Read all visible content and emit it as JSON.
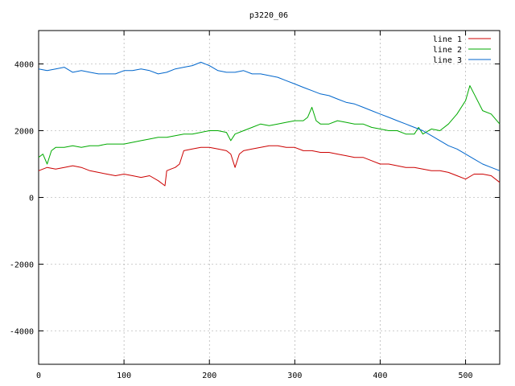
{
  "chart_data": {
    "type": "line",
    "title": "p3220_06",
    "xlabel": "",
    "ylabel": "",
    "xlim": [
      0,
      540
    ],
    "ylim": [
      -5000,
      5000
    ],
    "xticks": [
      0,
      100,
      200,
      300,
      400,
      500
    ],
    "yticks": [
      -4000,
      -2000,
      0,
      2000,
      4000
    ],
    "grid": true,
    "legend_position": "top-right",
    "series": [
      {
        "name": "line 1",
        "color": "#cc0000",
        "x": [
          0,
          10,
          20,
          30,
          40,
          50,
          60,
          70,
          80,
          90,
          100,
          110,
          120,
          130,
          140,
          148,
          150,
          155,
          160,
          165,
          170,
          180,
          190,
          200,
          210,
          220,
          225,
          230,
          235,
          240,
          250,
          260,
          270,
          280,
          290,
          300,
          310,
          320,
          330,
          340,
          350,
          360,
          370,
          380,
          390,
          400,
          410,
          420,
          430,
          440,
          450,
          460,
          470,
          480,
          490,
          500,
          510,
          520,
          530,
          540
        ],
        "y": [
          800,
          900,
          850,
          900,
          950,
          900,
          800,
          750,
          700,
          650,
          700,
          650,
          600,
          650,
          500,
          350,
          800,
          850,
          900,
          1000,
          1400,
          1450,
          1500,
          1500,
          1450,
          1400,
          1300,
          900,
          1300,
          1400,
          1450,
          1500,
          1550,
          1550,
          1500,
          1500,
          1400,
          1400,
          1350,
          1350,
          1300,
          1250,
          1200,
          1200,
          1100,
          1000,
          1000,
          950,
          900,
          900,
          850,
          800,
          800,
          750,
          650,
          550,
          700,
          700,
          650,
          450
        ]
      },
      {
        "name": "line 2",
        "color": "#00aa00",
        "x": [
          0,
          5,
          10,
          15,
          20,
          30,
          40,
          50,
          60,
          70,
          80,
          90,
          100,
          110,
          120,
          130,
          140,
          150,
          160,
          170,
          180,
          190,
          200,
          210,
          220,
          225,
          230,
          240,
          250,
          260,
          270,
          280,
          290,
          300,
          310,
          315,
          320,
          325,
          330,
          340,
          350,
          360,
          370,
          380,
          390,
          400,
          410,
          420,
          430,
          440,
          445,
          450,
          460,
          470,
          480,
          490,
          500,
          505,
          510,
          520,
          530,
          540
        ],
        "y": [
          1200,
          1300,
          1000,
          1400,
          1500,
          1500,
          1550,
          1500,
          1550,
          1550,
          1600,
          1600,
          1600,
          1650,
          1700,
          1750,
          1800,
          1800,
          1850,
          1900,
          1900,
          1950,
          2000,
          2000,
          1950,
          1700,
          1900,
          2000,
          2100,
          2200,
          2150,
          2200,
          2250,
          2300,
          2300,
          2400,
          2700,
          2300,
          2200,
          2200,
          2300,
          2250,
          2200,
          2200,
          2100,
          2050,
          2000,
          2000,
          1900,
          1900,
          2100,
          1900,
          2050,
          2000,
          2200,
          2500,
          2900,
          3350,
          3100,
          2600,
          2500,
          2200
        ]
      },
      {
        "name": "line 3",
        "color": "#0066cc",
        "x": [
          0,
          10,
          20,
          30,
          40,
          50,
          60,
          70,
          80,
          90,
          100,
          110,
          120,
          130,
          140,
          150,
          160,
          170,
          180,
          190,
          200,
          210,
          220,
          230,
          240,
          250,
          260,
          270,
          280,
          290,
          300,
          310,
          320,
          330,
          340,
          350,
          360,
          370,
          380,
          390,
          400,
          410,
          420,
          430,
          440,
          450,
          460,
          470,
          480,
          490,
          500,
          510,
          520,
          530,
          540
        ],
        "y": [
          3850,
          3800,
          3850,
          3900,
          3750,
          3800,
          3750,
          3700,
          3700,
          3700,
          3800,
          3800,
          3850,
          3800,
          3700,
          3750,
          3850,
          3900,
          3950,
          4050,
          3950,
          3800,
          3750,
          3750,
          3800,
          3700,
          3700,
          3650,
          3600,
          3500,
          3400,
          3300,
          3200,
          3100,
          3050,
          2950,
          2850,
          2800,
          2700,
          2600,
          2500,
          2400,
          2300,
          2200,
          2100,
          2000,
          1850,
          1700,
          1550,
          1450,
          1300,
          1150,
          1000,
          900,
          800
        ]
      }
    ]
  }
}
